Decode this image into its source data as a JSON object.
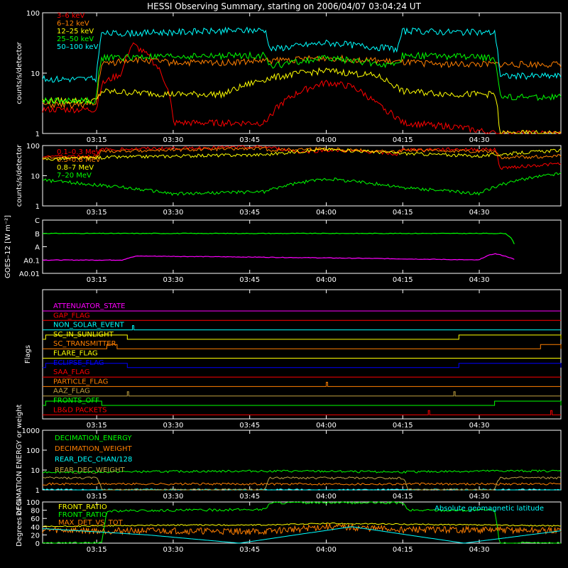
{
  "page_title": "HESSI Observing Summary, starting on 2006/04/07 03:04:24 UT",
  "time_axis": {
    "range": [
      "03:04:24",
      "04:46"
    ],
    "ticks": [
      "03:15",
      "03:30",
      "03:45",
      "04:00",
      "04:15",
      "04:30"
    ]
  },
  "colors": {
    "background": "#000000",
    "axes": "#ffffff",
    "red": "#ff0000",
    "orange": "#ff7f00",
    "yellow": "#ffff00",
    "green": "#00ff00",
    "cyan": "#00ffff",
    "magenta": "#ff00ff",
    "blue": "#0000ff",
    "olive": "#bfa040"
  },
  "chart_data": [
    {
      "id": "count_rates",
      "type": "line",
      "ylabel": "counts/s/detector",
      "yscale": "log",
      "ylim": [
        1,
        100
      ],
      "y_ticks": [
        "1",
        "10",
        "100"
      ],
      "grid": false,
      "legend_position": "top-left",
      "series": [
        {
          "name": "3–6 keV",
          "color": "#ff0000",
          "x": [
            "03:05",
            "03:15",
            "03:16",
            "03:20",
            "03:22",
            "03:30",
            "03:40",
            "03:48",
            "03:55",
            "04:00",
            "04:05",
            "04:10",
            "04:15",
            "04:25",
            "04:33",
            "04:46"
          ],
          "values": [
            2.5,
            2.5,
            6.5,
            10,
            30,
            1.5,
            1.5,
            1.5,
            5,
            7,
            6,
            3,
            1.5,
            1.3,
            1,
            1
          ]
        },
        {
          "name": "6–12 keV",
          "color": "#ff7f00",
          "x": [
            "03:05",
            "03:15",
            "03:16",
            "03:22",
            "03:30",
            "03:40",
            "03:48",
            "03:55",
            "04:00",
            "04:05",
            "04:10",
            "04:15",
            "04:25",
            "04:33",
            "04:46"
          ],
          "values": [
            3,
            3,
            14,
            17,
            15,
            15,
            16,
            17,
            18,
            17,
            16,
            15,
            14,
            14,
            14
          ]
        },
        {
          "name": "12–25 keV",
          "color": "#ffff00",
          "x": [
            "03:05",
            "03:15",
            "03:16",
            "03:30",
            "03:40",
            "03:48",
            "03:55",
            "04:00",
            "04:05",
            "04:10",
            "04:15",
            "04:25",
            "04:33",
            "04:34",
            "04:46"
          ],
          "values": [
            3.5,
            3.5,
            5,
            4.5,
            4.5,
            8,
            10,
            11,
            10,
            9,
            5,
            4.5,
            4.5,
            1,
            1
          ]
        },
        {
          "name": "25–50 keV",
          "color": "#00ff00",
          "x": [
            "03:05",
            "03:15",
            "03:16",
            "03:48",
            "03:49",
            "04:00",
            "04:14",
            "04:15",
            "04:33",
            "04:34",
            "04:46"
          ],
          "values": [
            3.5,
            3.5,
            18,
            20,
            13,
            18,
            13,
            20,
            18,
            4,
            4
          ]
        },
        {
          "name": "50–100 keV",
          "color": "#00ffff",
          "x": [
            "03:05",
            "03:15",
            "03:16",
            "03:48",
            "03:49",
            "04:00",
            "04:14",
            "04:15",
            "04:33",
            "04:34",
            "04:46"
          ],
          "values": [
            8,
            8,
            45,
            52,
            25,
            32,
            25,
            50,
            47,
            9,
            9
          ]
        }
      ]
    },
    {
      "id": "high_energy_rates",
      "type": "line",
      "ylabel": "counts/s/detector",
      "yscale": "log",
      "ylim": [
        1,
        100
      ],
      "y_ticks": [
        "1",
        "10",
        "100"
      ],
      "grid": false,
      "legend_position": "top-left",
      "series": [
        {
          "name": "0.1–0.3 MeV",
          "color": "#ff0000",
          "x": [
            "03:05",
            "03:15",
            "03:16",
            "03:48",
            "03:55",
            "04:00",
            "04:10",
            "04:14",
            "04:15",
            "04:33",
            "04:34",
            "04:46"
          ],
          "values": [
            45,
            45,
            75,
            90,
            60,
            70,
            60,
            50,
            75,
            75,
            18,
            25
          ]
        },
        {
          "name": "0.3–0.8 MeV",
          "color": "#ff7f00",
          "x": [
            "03:05",
            "03:15",
            "03:16",
            "03:48",
            "03:49",
            "04:00",
            "04:14",
            "04:15",
            "04:33",
            "04:34",
            "04:46"
          ],
          "values": [
            40,
            40,
            65,
            80,
            70,
            80,
            60,
            70,
            65,
            40,
            45
          ]
        },
        {
          "name": "0.8–7 MeV",
          "color": "#ffff00",
          "x": [
            "03:05",
            "03:15",
            "03:30",
            "03:48",
            "04:00",
            "04:15",
            "04:30",
            "04:46"
          ],
          "values": [
            35,
            40,
            45,
            50,
            75,
            55,
            45,
            70
          ]
        },
        {
          "name": "7–20 MeV",
          "color": "#00ff00",
          "x": [
            "03:05",
            "03:15",
            "03:30",
            "03:48",
            "04:00",
            "04:15",
            "04:30",
            "04:46"
          ],
          "values": [
            7,
            5,
            2.5,
            3,
            8,
            4,
            2.5,
            12
          ]
        }
      ]
    },
    {
      "id": "goes",
      "type": "line",
      "ylabel": "GOES–12 [W m⁻²]",
      "yscale": "log",
      "y_ticks": [
        "A0.01",
        "A0.1",
        "A",
        "B",
        "C"
      ],
      "grid": false,
      "series": [
        {
          "color": "#00ff00",
          "x": [
            "03:05",
            "03:20",
            "04:30",
            "04:35",
            "04:37"
          ],
          "values": [
            "B",
            "B",
            "B",
            "B",
            "A"
          ]
        },
        {
          "color": "#ff00ff",
          "x": [
            "03:05",
            "03:20",
            "03:23",
            "04:30",
            "04:33",
            "04:37"
          ],
          "values": [
            "A0.1",
            "A0.1",
            "A0.2",
            "A0.1",
            "A0.3",
            "A0.1"
          ]
        }
      ]
    },
    {
      "id": "flags",
      "type": "line",
      "ylabel": "Flags",
      "grid": false,
      "legend_position": "top-left",
      "series": [
        {
          "name": "ATTENUATOR_STATE",
          "color": "#ff00ff",
          "on": []
        },
        {
          "name": "GAP_FLAG",
          "color": "#ff0000",
          "on": []
        },
        {
          "name": "NON_SOLAR_EVENT",
          "color": "#00ffff",
          "on": [
            [
              "03:22",
              "03:22"
            ]
          ]
        },
        {
          "name": "SC_IN_SUNLIGHT",
          "color": "#ffff00",
          "on": [
            [
              "03:05",
              "03:21"
            ],
            [
              "04:26",
              "04:46"
            ]
          ]
        },
        {
          "name": "SC_TRANSMITTER",
          "color": "#ff7f00",
          "on": [
            [
              "03:17",
              "03:19"
            ],
            [
              "04:42",
              "04:46"
            ]
          ]
        },
        {
          "name": "FLARE_FLAG",
          "color": "#ffff00",
          "on": []
        },
        {
          "name": "ECLIPSE_FLAG",
          "color": "#0000ff",
          "on": [
            [
              "03:05",
              "03:21"
            ],
            [
              "04:26",
              "04:46"
            ]
          ]
        },
        {
          "name": "SAA_FLAG",
          "color": "#ff0000",
          "on": []
        },
        {
          "name": "PARTICLE_FLAG",
          "color": "#ff7f00",
          "on": [
            [
              "04:00",
              "04:00"
            ]
          ]
        },
        {
          "name": "AAZ_FLAG",
          "color": "#bfa040",
          "on": [
            [
              "03:21",
              "03:21"
            ],
            [
              "04:25",
              "04:25"
            ]
          ]
        },
        {
          "name": "FRONTS_OFF",
          "color": "#00ff00",
          "on": [
            [
              "03:05",
              "03:16"
            ],
            [
              "04:33",
              "04:46"
            ]
          ]
        },
        {
          "name": "LB&D PACKETS",
          "color": "#ff0000",
          "on": [
            [
              "04:20",
              "04:20"
            ],
            [
              "04:44",
              "04:44"
            ]
          ]
        }
      ]
    },
    {
      "id": "decimation",
      "type": "line",
      "ylabel": "DECIMATION ENERGY or weight",
      "yscale": "log",
      "ylim": [
        1,
        1000
      ],
      "y_ticks": [
        "1",
        "10",
        "100",
        "1000"
      ],
      "grid": false,
      "legend_position": "top-left",
      "series": [
        {
          "name": "DECIMATION_ENERGY",
          "color": "#00ff00",
          "x": [
            "03:05",
            "03:15",
            "03:48",
            "04:15",
            "04:33",
            "04:46"
          ],
          "values": [
            8,
            8,
            9,
            8,
            9,
            9
          ]
        },
        {
          "name": "DECIMATION_WEIGHT",
          "color": "#ff7f00",
          "x": [
            "03:05",
            "03:15",
            "03:48",
            "04:15",
            "04:33",
            "04:46"
          ],
          "values": [
            2,
            2,
            2,
            2,
            2,
            2
          ]
        },
        {
          "name": "REAR_DEC_CHAN/128",
          "color": "#00ffff",
          "x": [
            "03:05",
            "04:46"
          ],
          "values": [
            1,
            1
          ]
        },
        {
          "name": "REAR_DEC_WEIGHT",
          "color": "#bfa040",
          "x": [
            "03:05",
            "03:15",
            "03:16",
            "03:48",
            "03:49",
            "04:15",
            "04:16",
            "04:33",
            "04:34",
            "04:46"
          ],
          "values": [
            4,
            4,
            1,
            1,
            4,
            4,
            1,
            1,
            4,
            4
          ]
        }
      ]
    },
    {
      "id": "ratios",
      "type": "line",
      "ylabel": "Degrees or %",
      "ylim": [
        0,
        100
      ],
      "y_ticks": [
        "0",
        "20",
        "40",
        "60",
        "80",
        "100"
      ],
      "grid": false,
      "legend_position": "top-left",
      "annotation": "Absolute geomagnetic latitude",
      "series": [
        {
          "name": "FRONT_RATIO",
          "color": "#ffff00",
          "x": [
            "03:05",
            "03:15",
            "03:30",
            "03:48",
            "04:00",
            "04:15",
            "04:30",
            "04:46"
          ],
          "values": [
            40,
            42,
            44,
            44,
            48,
            46,
            44,
            42
          ]
        },
        {
          "name": "FRONT_RATIO",
          "color": "#00ff00",
          "x": [
            "03:05",
            "03:16",
            "03:17",
            "03:48",
            "03:49",
            "04:15",
            "04:16",
            "04:33",
            "04:34",
            "04:46"
          ],
          "values": [
            0,
            0,
            78,
            82,
            98,
            98,
            80,
            80,
            0,
            0
          ]
        },
        {
          "name": "MAX_DET_VS_TOT",
          "color": "#ff7f00",
          "x": [
            "03:05",
            "03:15",
            "03:30",
            "03:48",
            "04:00",
            "04:15",
            "04:30",
            "04:46"
          ],
          "values": [
            32,
            30,
            30,
            28,
            40,
            33,
            32,
            30
          ]
        },
        {
          "name": "",
          "color": "#00ffff",
          "x": [
            "03:05",
            "03:25",
            "03:43",
            "04:05",
            "04:27",
            "04:46"
          ],
          "values": [
            35,
            20,
            0,
            40,
            0,
            30
          ]
        }
      ]
    }
  ]
}
